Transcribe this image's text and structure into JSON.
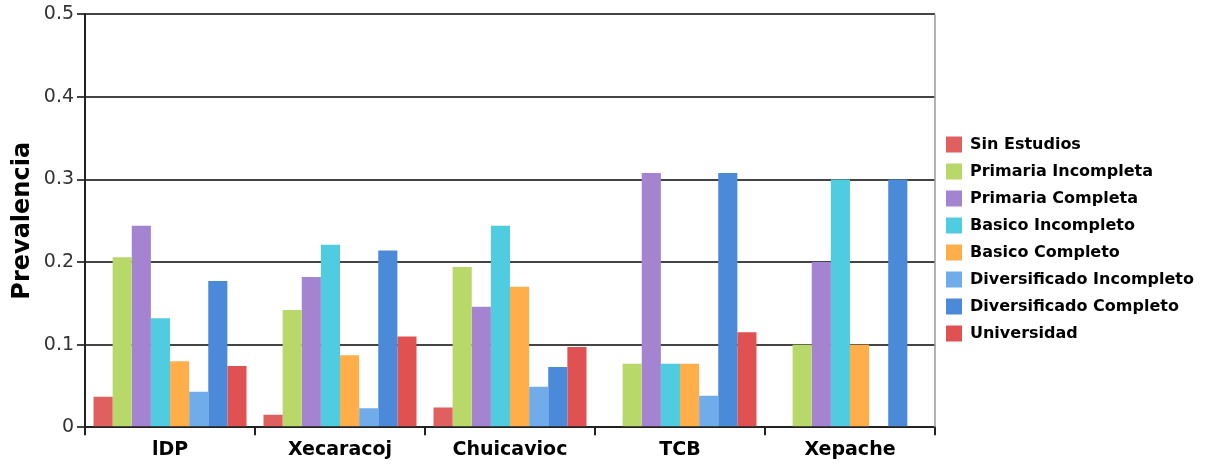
{
  "chart_data": {
    "type": "bar",
    "ylabel": "Prevalencia",
    "categories": [
      "lDP",
      "Xecaracoj",
      "Chuicavioc",
      "TCB",
      "Xepache"
    ],
    "series": [
      {
        "name": "Sin Estudios",
        "color": "#e06060",
        "values": [
          0.037,
          0.015,
          0.024,
          0,
          0
        ]
      },
      {
        "name": "Primaria Incompleta",
        "color": "#b8d86a",
        "values": [
          0.206,
          0.142,
          0.194,
          0.077,
          0.1
        ]
      },
      {
        "name": "Primaria Completa",
        "color": "#a484d0",
        "values": [
          0.244,
          0.182,
          0.146,
          0.308,
          0.2
        ]
      },
      {
        "name": "Basico Incompleto",
        "color": "#50cce0",
        "values": [
          0.132,
          0.221,
          0.244,
          0.077,
          0.3
        ]
      },
      {
        "name": "Basico Completo",
        "color": "#ffae4a",
        "values": [
          0.08,
          0.087,
          0.17,
          0.077,
          0.1
        ]
      },
      {
        "name": "Diversificado Incompleto",
        "color": "#70acea",
        "values": [
          0.043,
          0.023,
          0.049,
          0.038,
          0
        ]
      },
      {
        "name": "Diversificado Completo",
        "color": "#4a8ad8",
        "values": [
          0.177,
          0.214,
          0.073,
          0.308,
          0.3
        ]
      },
      {
        "name": "Universidad",
        "color": "#e05252",
        "values": [
          0.074,
          0.11,
          0.097,
          0.115,
          0
        ]
      }
    ],
    "ylim": [
      0,
      0.5
    ],
    "yticks": [
      0,
      0.1,
      0.2,
      0.3,
      0.4,
      0.5
    ],
    "grid": "y",
    "legend": "right"
  }
}
